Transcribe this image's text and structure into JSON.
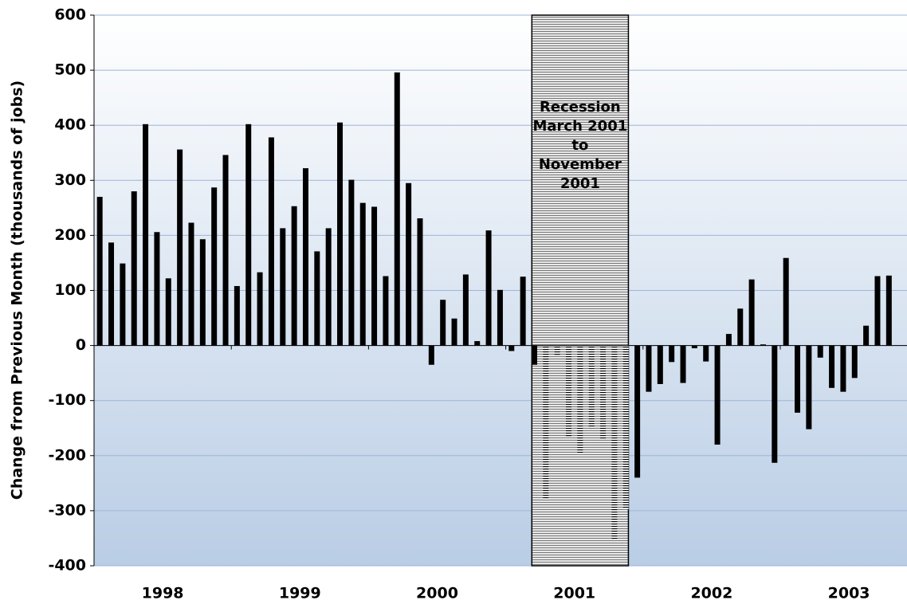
{
  "chart_data": {
    "type": "bar",
    "y_label": "Change from Previous Month (thousands of jobs)",
    "annotation": [
      "Recession",
      "March 2001",
      "to",
      "November",
      "2001"
    ],
    "years": [
      "1998",
      "1999",
      "2000",
      "2001",
      "2002",
      "2003"
    ],
    "categories": [
      null,
      null,
      null,
      null,
      null,
      null,
      null,
      null,
      null,
      null,
      null,
      null,
      null,
      null,
      null,
      null,
      null,
      null,
      null,
      null,
      null,
      null,
      null,
      null,
      null,
      null,
      null,
      null,
      null,
      null,
      null,
      null,
      null,
      null,
      null,
      null,
      null,
      null,
      null,
      null,
      null,
      null,
      null,
      null,
      null,
      null,
      null,
      null,
      null,
      null,
      null,
      null,
      null,
      null,
      null,
      null,
      null,
      null,
      null,
      null,
      null,
      null,
      null,
      null,
      null,
      null,
      null,
      null,
      null,
      null
    ],
    "values": [
      270,
      187,
      149,
      280,
      402,
      206,
      122,
      356,
      223,
      193,
      287,
      346,
      108,
      402,
      133,
      378,
      213,
      253,
      322,
      171,
      213,
      405,
      301,
      259,
      252,
      126,
      496,
      295,
      231,
      -35,
      83,
      49,
      129,
      8,
      209,
      101,
      -10,
      125,
      -35,
      -280,
      -18,
      -165,
      -197,
      -150,
      -170,
      -353,
      -297,
      -240,
      -84,
      -70,
      -30,
      -68,
      -5,
      -29,
      -180,
      21,
      67,
      120,
      2,
      -213,
      159,
      -122,
      -152,
      -22,
      -77,
      -84,
      -59,
      36,
      126,
      127
    ],
    "color": "#000000",
    "ylim": [
      -400,
      600
    ],
    "yticks": [
      -400,
      -300,
      -200,
      -100,
      0,
      100,
      200,
      300,
      400,
      500,
      600
    ],
    "grid": true
  }
}
